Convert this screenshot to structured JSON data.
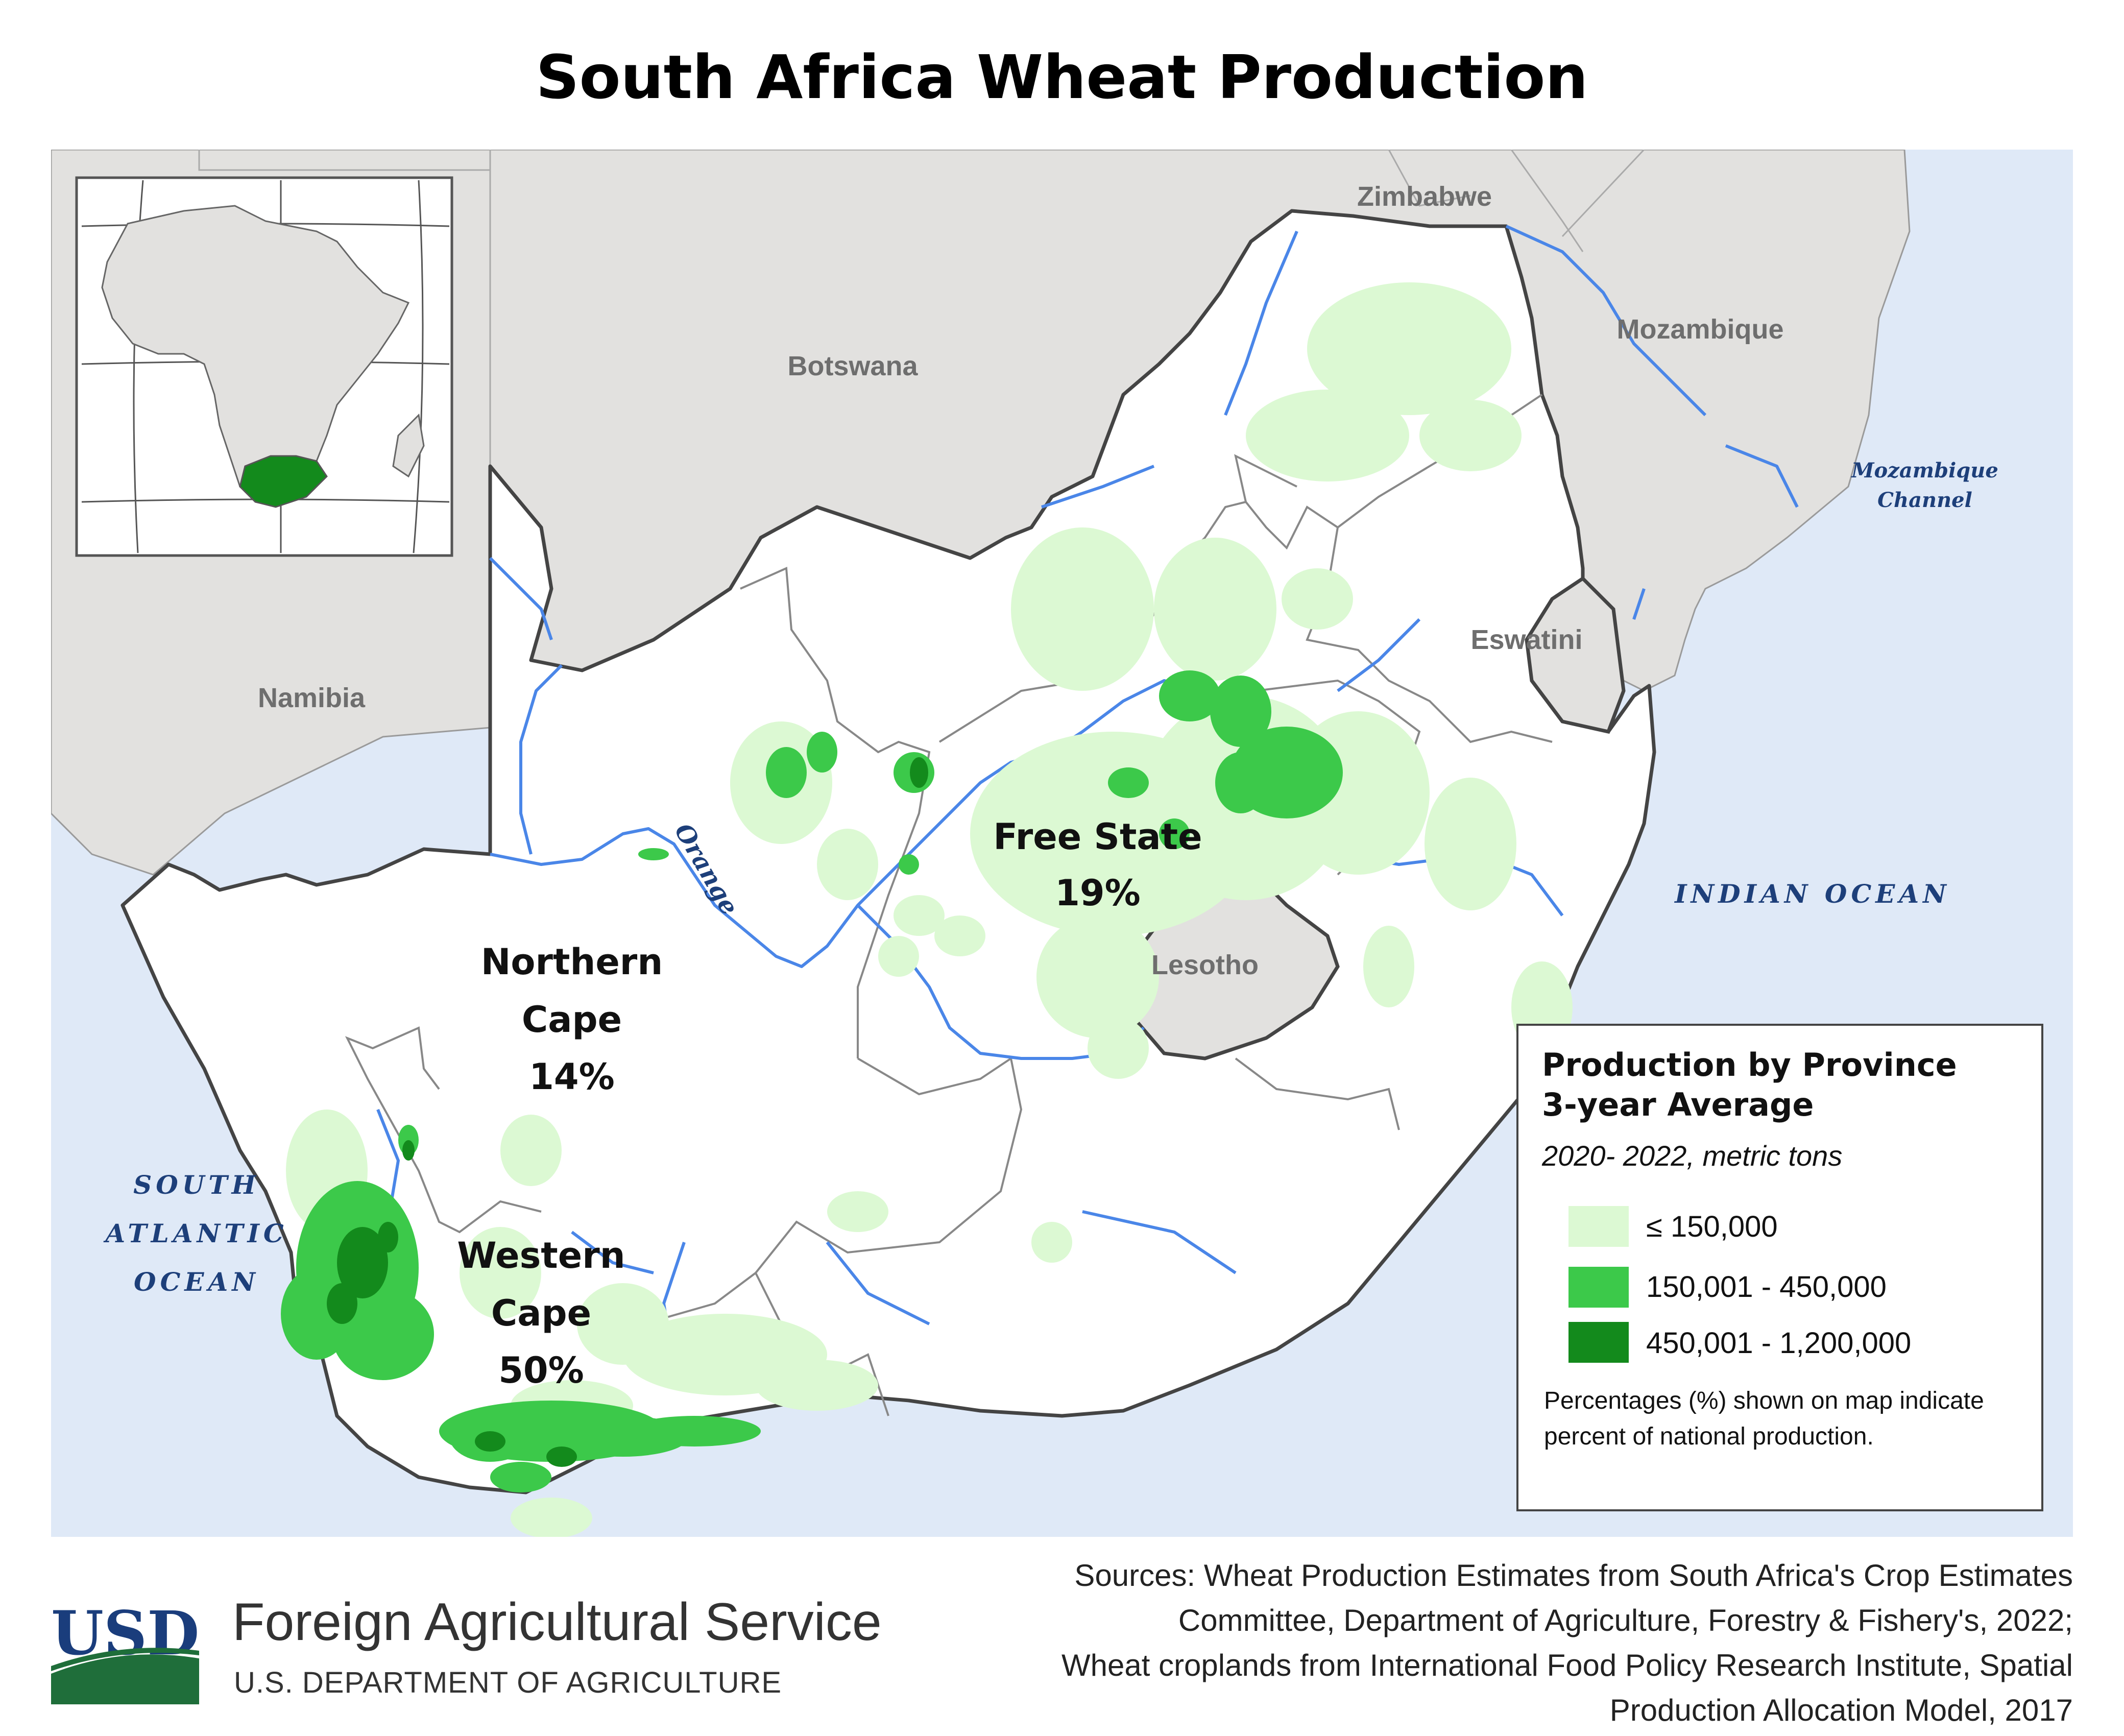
{
  "title": "South Africa Wheat Production",
  "colors": {
    "ocean": "#dfe9f7",
    "land_outside": "#e2e1df",
    "land_country": "#ffffff",
    "border": "#555555",
    "province_border": "#888888",
    "river": "#4a86e8",
    "low": "#dcf9d3",
    "mid": "#3cc94a",
    "high": "#138a1c",
    "ocean_label": "#1d3f7a"
  },
  "countries": {
    "zimbabwe": "Zimbabwe",
    "botswana": "Botswana",
    "mozambique": "Mozambique",
    "namibia": "Namibia",
    "eswatini": "Eswatini",
    "lesotho": "Lesotho"
  },
  "water": {
    "mozambique_channel": [
      "Mozambique",
      "Channel"
    ],
    "indian_ocean": "INDIAN OCEAN",
    "south_atlantic": [
      "SOUTH",
      "ATLANTIC",
      "OCEAN"
    ],
    "river_orange": "Orange"
  },
  "provinces": [
    {
      "name": [
        "Free State"
      ],
      "share": "19%"
    },
    {
      "name": [
        "Northern",
        "Cape"
      ],
      "share": "14%"
    },
    {
      "name": [
        "Western",
        "Cape"
      ],
      "share": "50%"
    }
  ],
  "legend": {
    "title_lines": [
      "Production by Province",
      "3-year Average"
    ],
    "subtitle": "2020- 2022, metric tons",
    "classes": [
      {
        "label": "≤ 150,000",
        "color": "#dcf9d3"
      },
      {
        "label": "150,001 - 450,000",
        "color": "#3cc94a"
      },
      {
        "label": "450,001 - 1,200,000",
        "color": "#138a1c"
      }
    ],
    "note": "Percentages (%) shown on map indicate percent of national production."
  },
  "footer": {
    "logo_text": "USDA",
    "agency": "Foreign Agricultural Service",
    "department": "U.S. DEPARTMENT OF AGRICULTURE",
    "sources": [
      "Sources: Wheat Production Estimates from South Africa's Crop Estimates",
      "Committee, Department of Agriculture, Forestry & Fishery's, 2022;",
      "Wheat croplands from International Food Policy Research Institute, Spatial",
      "Production Allocation Model, 2017"
    ]
  }
}
